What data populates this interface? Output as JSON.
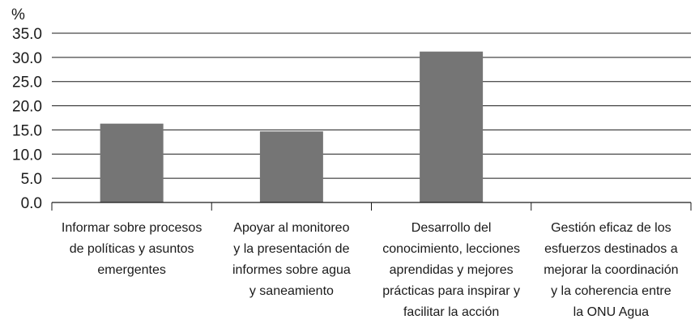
{
  "chart_data": {
    "type": "bar",
    "ylabel": "%",
    "ylim": [
      0,
      35
    ],
    "yticks": [
      "0.0",
      "5.0",
      "10.0",
      "15.0",
      "20.0",
      "25.0",
      "30.0",
      "35.0"
    ],
    "grid": true,
    "categories": [
      [
        "Informar sobre procesos",
        "de políticas y asuntos",
        "emergentes"
      ],
      [
        "Apoyar al monitoreo",
        "y la presentación de",
        "informes sobre agua",
        "y saneamiento"
      ],
      [
        "Desarrollo del",
        "conocimiento, lecciones",
        "aprendidas y mejores",
        "prácticas para inspirar y",
        "facilitar la acción"
      ],
      [
        "Gestión eficaz de los",
        "esfuerzos destinados a",
        "mejorar la coordinación",
        "y la coherencia entre",
        "la ONU Agua"
      ]
    ],
    "values": [
      16.3,
      14.7,
      31.2,
      0
    ],
    "colors": {
      "bar": "#757575",
      "grid": "#1a1a1a",
      "text": "#1a1a1a"
    }
  }
}
